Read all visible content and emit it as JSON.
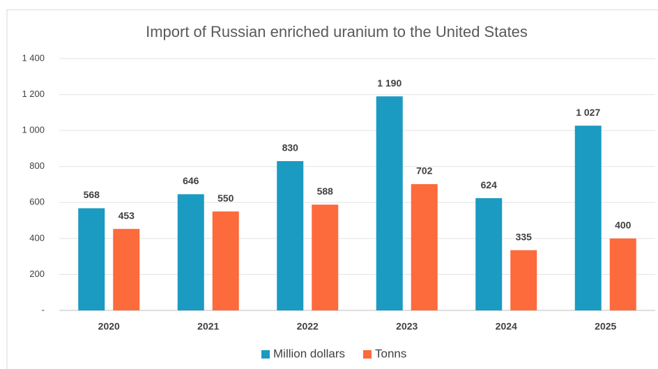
{
  "chart_data": {
    "type": "bar",
    "title": "Import of Russian enriched uranium to the United States",
    "categories": [
      "2020",
      "2021",
      "2022",
      "2023",
      "2024",
      "2025"
    ],
    "series": [
      {
        "name": "Million dollars",
        "color": "#1b9ac2",
        "values": [
          568,
          646,
          830,
          1190,
          624,
          1027
        ],
        "value_labels": [
          "568",
          "646",
          "830",
          "1 190",
          "624",
          "1 027"
        ]
      },
      {
        "name": "Tonns",
        "color": "#fd6a3c",
        "values": [
          453,
          550,
          588,
          702,
          335,
          400
        ]
      }
    ],
    "ylim": [
      0,
      1400
    ],
    "yticks": [
      {
        "value": 0,
        "label": "-"
      },
      200,
      400,
      600,
      800,
      {
        "value": 1000,
        "label": "1 000"
      },
      {
        "value": 1200,
        "label": "1 200"
      },
      {
        "value": 1400,
        "label": "1 400"
      }
    ],
    "grid": true,
    "legend": "bottom"
  }
}
